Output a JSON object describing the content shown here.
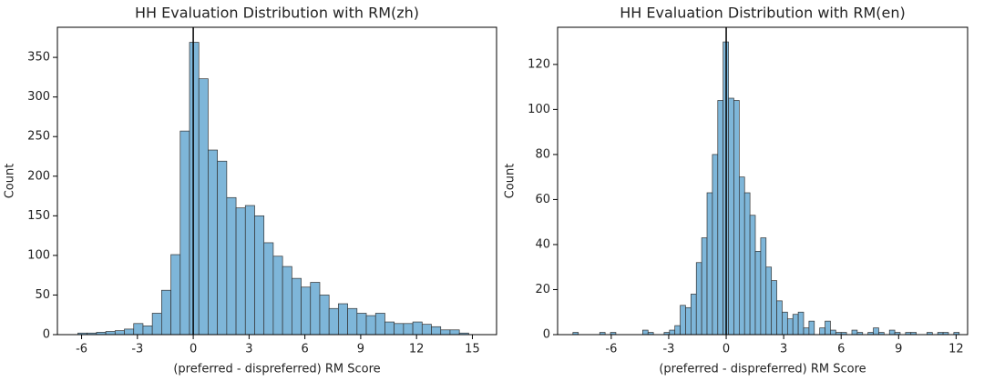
{
  "chart_data": [
    {
      "type": "histogram",
      "title": "HH Evaluation Distribution with RM(zh)",
      "x_label": "(preferred - dispreferred) RM Score",
      "y_label": "Count",
      "bins": [
        -6.2,
        -5.7,
        -5.2,
        -4.7,
        -4.2,
        -3.7,
        -3.2,
        -2.7,
        -2.2,
        -1.7,
        -1.2,
        -0.7,
        -0.2,
        0.3,
        0.8,
        1.3,
        1.8,
        2.3,
        2.8,
        3.3,
        3.8,
        4.3,
        4.8,
        5.3,
        5.8,
        6.3,
        6.8,
        7.3,
        7.8,
        8.3,
        8.8,
        9.3,
        9.8,
        10.3,
        10.8,
        11.3,
        11.8,
        12.3,
        12.8,
        13.3,
        13.8,
        14.3,
        14.8
      ],
      "values": [
        2,
        2,
        3,
        4,
        5,
        7,
        14,
        11,
        27,
        56,
        101,
        257,
        369,
        323,
        233,
        219,
        173,
        160,
        163,
        150,
        116,
        99,
        86,
        71,
        60,
        66,
        50,
        33,
        39,
        33,
        27,
        24,
        27,
        16,
        14,
        14,
        16,
        13,
        10,
        6,
        6,
        2
      ],
      "color": "#7eb6d9",
      "vline": 0,
      "xlim": [
        -7.3,
        16.3
      ],
      "xticks": [
        -6,
        -3,
        0,
        3,
        6,
        9,
        12,
        15
      ],
      "ylim": [
        0,
        388
      ],
      "yticks": [
        0,
        50,
        100,
        150,
        200,
        250,
        300,
        350
      ]
    },
    {
      "type": "histogram",
      "title": "HH Evaluation Distribution with RM(en)",
      "x_label": "(preferred - dispreferred) RM Score",
      "y_label": "Count",
      "bins": [
        -8.0,
        -7.72,
        -7.44,
        -7.16,
        -6.88,
        -6.6,
        -6.32,
        -6.04,
        -5.76,
        -5.48,
        -5.2,
        -4.92,
        -4.64,
        -4.36,
        -4.08,
        -3.8,
        -3.52,
        -3.24,
        -2.96,
        -2.68,
        -2.4,
        -2.12,
        -1.84,
        -1.56,
        -1.28,
        -1.0,
        -0.72,
        -0.44,
        -0.16,
        0.12,
        0.4,
        0.68,
        0.96,
        1.24,
        1.52,
        1.8,
        2.08,
        2.36,
        2.64,
        2.92,
        3.2,
        3.48,
        3.76,
        4.04,
        4.32,
        4.6,
        4.88,
        5.16,
        5.44,
        5.72,
        6.0,
        6.28,
        6.56,
        6.84,
        7.12,
        7.4,
        7.68,
        7.96,
        8.24,
        8.52,
        8.8,
        9.08,
        9.36,
        9.64,
        9.92,
        10.2,
        10.48,
        10.76,
        11.04,
        11.32,
        11.6,
        11.88,
        12.16
      ],
      "values": [
        1,
        0,
        0,
        0,
        0,
        1,
        0,
        1,
        0,
        0,
        0,
        0,
        0,
        2,
        1,
        0,
        0,
        1,
        2,
        4,
        13,
        12,
        18,
        32,
        43,
        63,
        80,
        104,
        130,
        105,
        104,
        70,
        63,
        53,
        37,
        43,
        30,
        24,
        15,
        10,
        7,
        9,
        10,
        3,
        6,
        0,
        3,
        6,
        2,
        1,
        1,
        0,
        2,
        1,
        0,
        1,
        3,
        1,
        0,
        2,
        1,
        0,
        1,
        1,
        0,
        0,
        1,
        0,
        1,
        1,
        0,
        1
      ],
      "color": "#7eb6d9",
      "vline": 0,
      "xlim": [
        -8.8,
        12.6
      ],
      "xticks": [
        -6,
        -3,
        0,
        3,
        6,
        9,
        12
      ],
      "ylim": [
        0,
        136.5
      ],
      "yticks": [
        0,
        20,
        40,
        60,
        80,
        100,
        120
      ]
    }
  ]
}
